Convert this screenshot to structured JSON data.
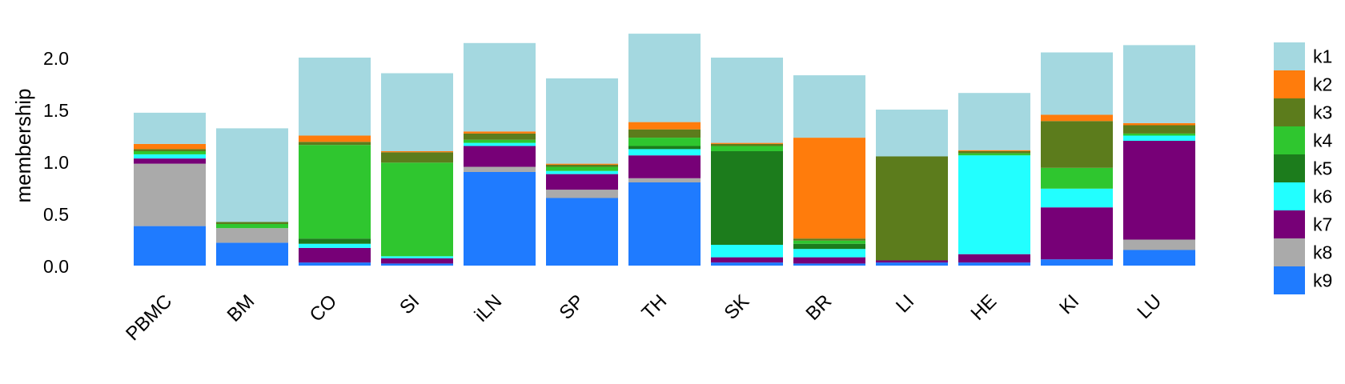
{
  "chart_data": {
    "type": "bar",
    "stacked": true,
    "title": "",
    "xlabel": "",
    "ylabel": "membership",
    "ylim": [
      0,
      2.3
    ],
    "yticks": [
      "0.0",
      "0.5",
      "1.0",
      "1.5",
      "2.0"
    ],
    "ytick_values": [
      0,
      0.5,
      1.0,
      1.5,
      2.0
    ],
    "grid": false,
    "legend_position": "right",
    "categories": [
      "PBMC",
      "BM",
      "CO",
      "SI",
      "iLN",
      "SP",
      "TH",
      "SK",
      "BR",
      "LI",
      "HE",
      "KI",
      "LU"
    ],
    "series": [
      {
        "name": "k9",
        "color": "#1f7bff",
        "values": [
          0.38,
          0.22,
          0.03,
          0.02,
          0.9,
          0.65,
          0.8,
          0.03,
          0.02,
          0.03,
          0.03,
          0.06,
          0.15
        ]
      },
      {
        "name": "k8",
        "color": "#aaaaaa",
        "values": [
          0.6,
          0.14,
          0.0,
          0.0,
          0.05,
          0.08,
          0.04,
          0.0,
          0.0,
          0.0,
          0.0,
          0.0,
          0.1
        ]
      },
      {
        "name": "k7",
        "color": "#770077",
        "values": [
          0.05,
          0.0,
          0.14,
          0.05,
          0.2,
          0.15,
          0.22,
          0.05,
          0.06,
          0.02,
          0.08,
          0.5,
          0.95
        ]
      },
      {
        "name": "k6",
        "color": "#22ffff",
        "values": [
          0.04,
          0.0,
          0.04,
          0.02,
          0.03,
          0.03,
          0.06,
          0.12,
          0.08,
          0.0,
          0.95,
          0.18,
          0.05
        ]
      },
      {
        "name": "k5",
        "color": "#1c7c1c",
        "values": [
          0.0,
          0.0,
          0.05,
          0.0,
          0.0,
          0.0,
          0.03,
          0.9,
          0.05,
          0.0,
          0.0,
          0.0,
          0.0
        ]
      },
      {
        "name": "k4",
        "color": "#2fc62f",
        "values": [
          0.03,
          0.04,
          0.9,
          0.9,
          0.03,
          0.04,
          0.08,
          0.05,
          0.03,
          0.0,
          0.02,
          0.2,
          0.02
        ]
      },
      {
        "name": "k3",
        "color": "#5c7c1c",
        "values": [
          0.02,
          0.02,
          0.03,
          0.1,
          0.06,
          0.02,
          0.08,
          0.02,
          0.02,
          1.0,
          0.02,
          0.45,
          0.08
        ]
      },
      {
        "name": "k2",
        "color": "#ff7c0c",
        "values": [
          0.05,
          0.0,
          0.06,
          0.01,
          0.02,
          0.01,
          0.07,
          0.01,
          0.97,
          0.0,
          0.01,
          0.06,
          0.02
        ]
      },
      {
        "name": "k1",
        "color": "#a4d8e0",
        "values": [
          0.3,
          0.9,
          0.75,
          0.75,
          0.85,
          0.82,
          0.85,
          0.82,
          0.6,
          0.45,
          0.55,
          0.6,
          0.75
        ]
      }
    ]
  }
}
